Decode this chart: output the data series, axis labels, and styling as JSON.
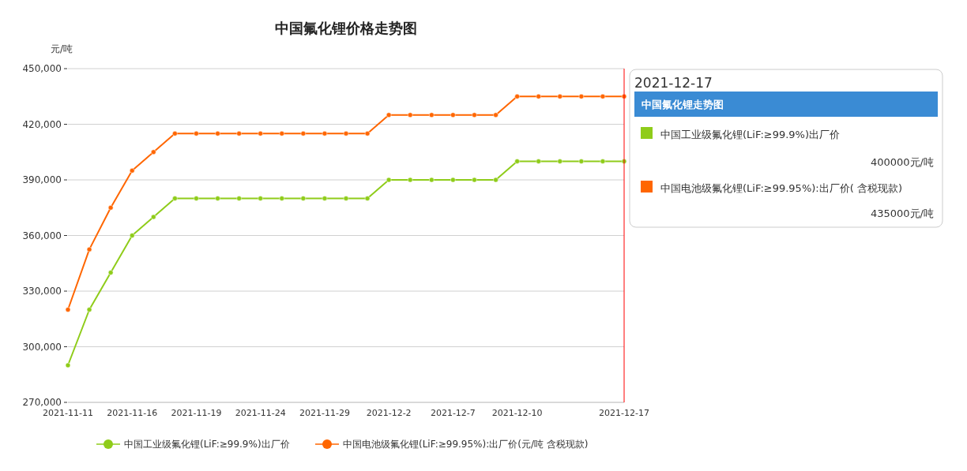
{
  "chart_data": {
    "type": "line",
    "title": "中国氟化锂价格走势图",
    "ylabel": "元/吨",
    "categories": [
      "2021-11-11",
      null,
      null,
      "2021-11-16",
      null,
      null,
      "2021-11-19",
      null,
      null,
      "2021-11-24",
      null,
      null,
      "2021-11-29",
      null,
      null,
      "2021-12-2",
      null,
      null,
      "2021-12-7",
      null,
      null,
      "2021-12-10",
      null,
      null,
      null,
      null,
      "2021-12-17"
    ],
    "series": [
      {
        "name": "中国工业级氟化锂(LiF:≥99.9%)出厂价",
        "color": "#8fcc1a",
        "values": [
          290000,
          320000,
          340000,
          360000,
          370000,
          380000,
          380000,
          380000,
          380000,
          380000,
          380000,
          380000,
          380000,
          380000,
          380000,
          390000,
          390000,
          390000,
          390000,
          390000,
          390000,
          400000,
          400000,
          400000,
          400000,
          400000,
          400000
        ]
      },
      {
        "name": "中国电池级氟化锂(LiF:≥99.95%):出厂价(元/吨 含税现款)",
        "color": "#ff6600",
        "values": [
          320000,
          352500,
          375000,
          395000,
          405000,
          415000,
          415000,
          415000,
          415000,
          415000,
          415000,
          415000,
          415000,
          415000,
          415000,
          425000,
          425000,
          425000,
          425000,
          425000,
          425000,
          435000,
          435000,
          435000,
          435000,
          435000,
          435000
        ]
      }
    ],
    "ylim": [
      270000,
      450000
    ],
    "yticks": [
      {
        "value": 270000,
        "label": "270,000"
      },
      {
        "value": 300000,
        "label": "300,000"
      },
      {
        "value": 330000,
        "label": "330,000"
      },
      {
        "value": 360000,
        "label": "360,000"
      },
      {
        "value": 390000,
        "label": "390,000"
      },
      {
        "value": 420000,
        "label": "420,000"
      },
      {
        "value": 450000,
        "label": "450,000"
      }
    ],
    "grid": "y",
    "legend": "bottom",
    "marker": "circle",
    "line_style": "solid",
    "ref_lines": [
      {
        "axis": "x",
        "value": "2021-12-17",
        "color": "#ff0000"
      }
    ],
    "annotations": [
      "2021-12-17",
      "中国氟化锂走势图",
      "中国工业级氟化锂(LiF:≥99.9%)出厂价",
      "400000元/吨",
      "中国电池级氟化锂(LiF:≥99.95%):出厂价( 含税现款)",
      "435000元/吨"
    ]
  }
}
